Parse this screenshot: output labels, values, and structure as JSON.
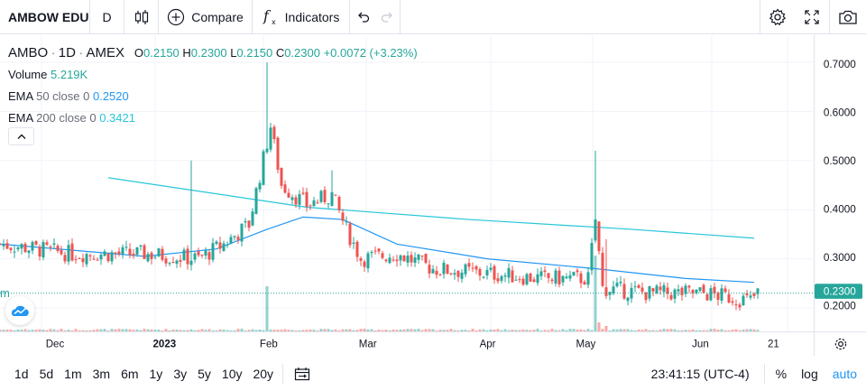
{
  "toolbar": {
    "symbol": "AMBOW EDU",
    "interval": "D",
    "compare_label": "Compare",
    "indicators_label": "Indicators"
  },
  "legend": {
    "ticker": "AMBO",
    "timeframe": "1D",
    "exchange": "AMEX",
    "open_label": "O",
    "open": "0.2150",
    "high_label": "H",
    "high": "0.2300",
    "low_label": "L",
    "low": "0.2150",
    "close_label": "C",
    "close": "0.2300",
    "change": "+0.0072 (+3.23%)",
    "volume_label": "Volume",
    "volume": "5.219K",
    "ema50_label": "EMA",
    "ema50_params": "50 close 0",
    "ema50_value": "0.2520",
    "ema200_label": "EMA",
    "ema200_params": "200 close 0",
    "ema200_value": "0.3421"
  },
  "last_price_label": "0.2300",
  "left_edge_label": "m",
  "colors": {
    "up": "#26a69a",
    "down": "#ef5350",
    "ema50": "#2196f3",
    "ema200": "#26c6da"
  },
  "bottom": {
    "ranges": [
      "1d",
      "5d",
      "1m",
      "3m",
      "6m",
      "1y",
      "3y",
      "5y",
      "10y",
      "20y"
    ],
    "clock": "23:41:15 (UTC-4)",
    "percent": "%",
    "log": "log",
    "auto": "auto"
  },
  "chart_data": {
    "type": "candlestick",
    "price_ticks": [
      "0.7000",
      "0.6000",
      "0.5000",
      "0.4000",
      "0.3000",
      "0.2000"
    ],
    "time_ticks": [
      "Dec",
      "2023",
      "Feb",
      "Mar",
      "Apr",
      "May",
      "Jun",
      "21"
    ],
    "ylim": [
      0.15,
      0.75
    ],
    "last_price": 0.23,
    "anchors": [
      {
        "t": 0,
        "c": 0.33
      },
      {
        "t": 20,
        "c": 0.31
      },
      {
        "t": 40,
        "c": 0.31
      },
      {
        "t": 55,
        "c": 0.3
      },
      {
        "t": 62,
        "c": 0.33
      },
      {
        "t": 69,
        "c": 0.37
      },
      {
        "t": 75,
        "c": 0.57
      },
      {
        "t": 78,
        "c": 0.45
      },
      {
        "t": 85,
        "c": 0.41
      },
      {
        "t": 92,
        "c": 0.43
      },
      {
        "t": 96,
        "c": 0.36
      },
      {
        "t": 100,
        "c": 0.3
      },
      {
        "t": 110,
        "c": 0.31
      },
      {
        "t": 120,
        "c": 0.28
      },
      {
        "t": 135,
        "c": 0.27
      },
      {
        "t": 150,
        "c": 0.26
      },
      {
        "t": 163,
        "c": 0.26
      },
      {
        "t": 165,
        "c": 0.38
      },
      {
        "t": 167,
        "c": 0.24
      },
      {
        "t": 180,
        "c": 0.23
      },
      {
        "t": 195,
        "c": 0.23
      },
      {
        "t": 208,
        "c": 0.215
      },
      {
        "t": 210,
        "c": 0.23
      }
    ],
    "spikes": [
      {
        "t": 74,
        "h": 0.7
      },
      {
        "t": 53,
        "h": 0.5
      },
      {
        "t": 92,
        "h": 0.48
      },
      {
        "t": 165,
        "h": 0.52
      },
      {
        "t": 168,
        "h": 0.34
      }
    ],
    "ema50": [
      [
        0,
        0.33
      ],
      [
        40,
        0.305
      ],
      [
        60,
        0.32
      ],
      [
        74,
        0.36
      ],
      [
        84,
        0.385
      ],
      [
        95,
        0.38
      ],
      [
        110,
        0.33
      ],
      [
        135,
        0.3
      ],
      [
        165,
        0.28
      ],
      [
        190,
        0.26
      ],
      [
        209,
        0.252
      ]
    ],
    "ema200": [
      [
        30,
        0.465
      ],
      [
        85,
        0.405
      ],
      [
        130,
        0.38
      ],
      [
        175,
        0.36
      ],
      [
        209,
        0.342
      ]
    ]
  }
}
